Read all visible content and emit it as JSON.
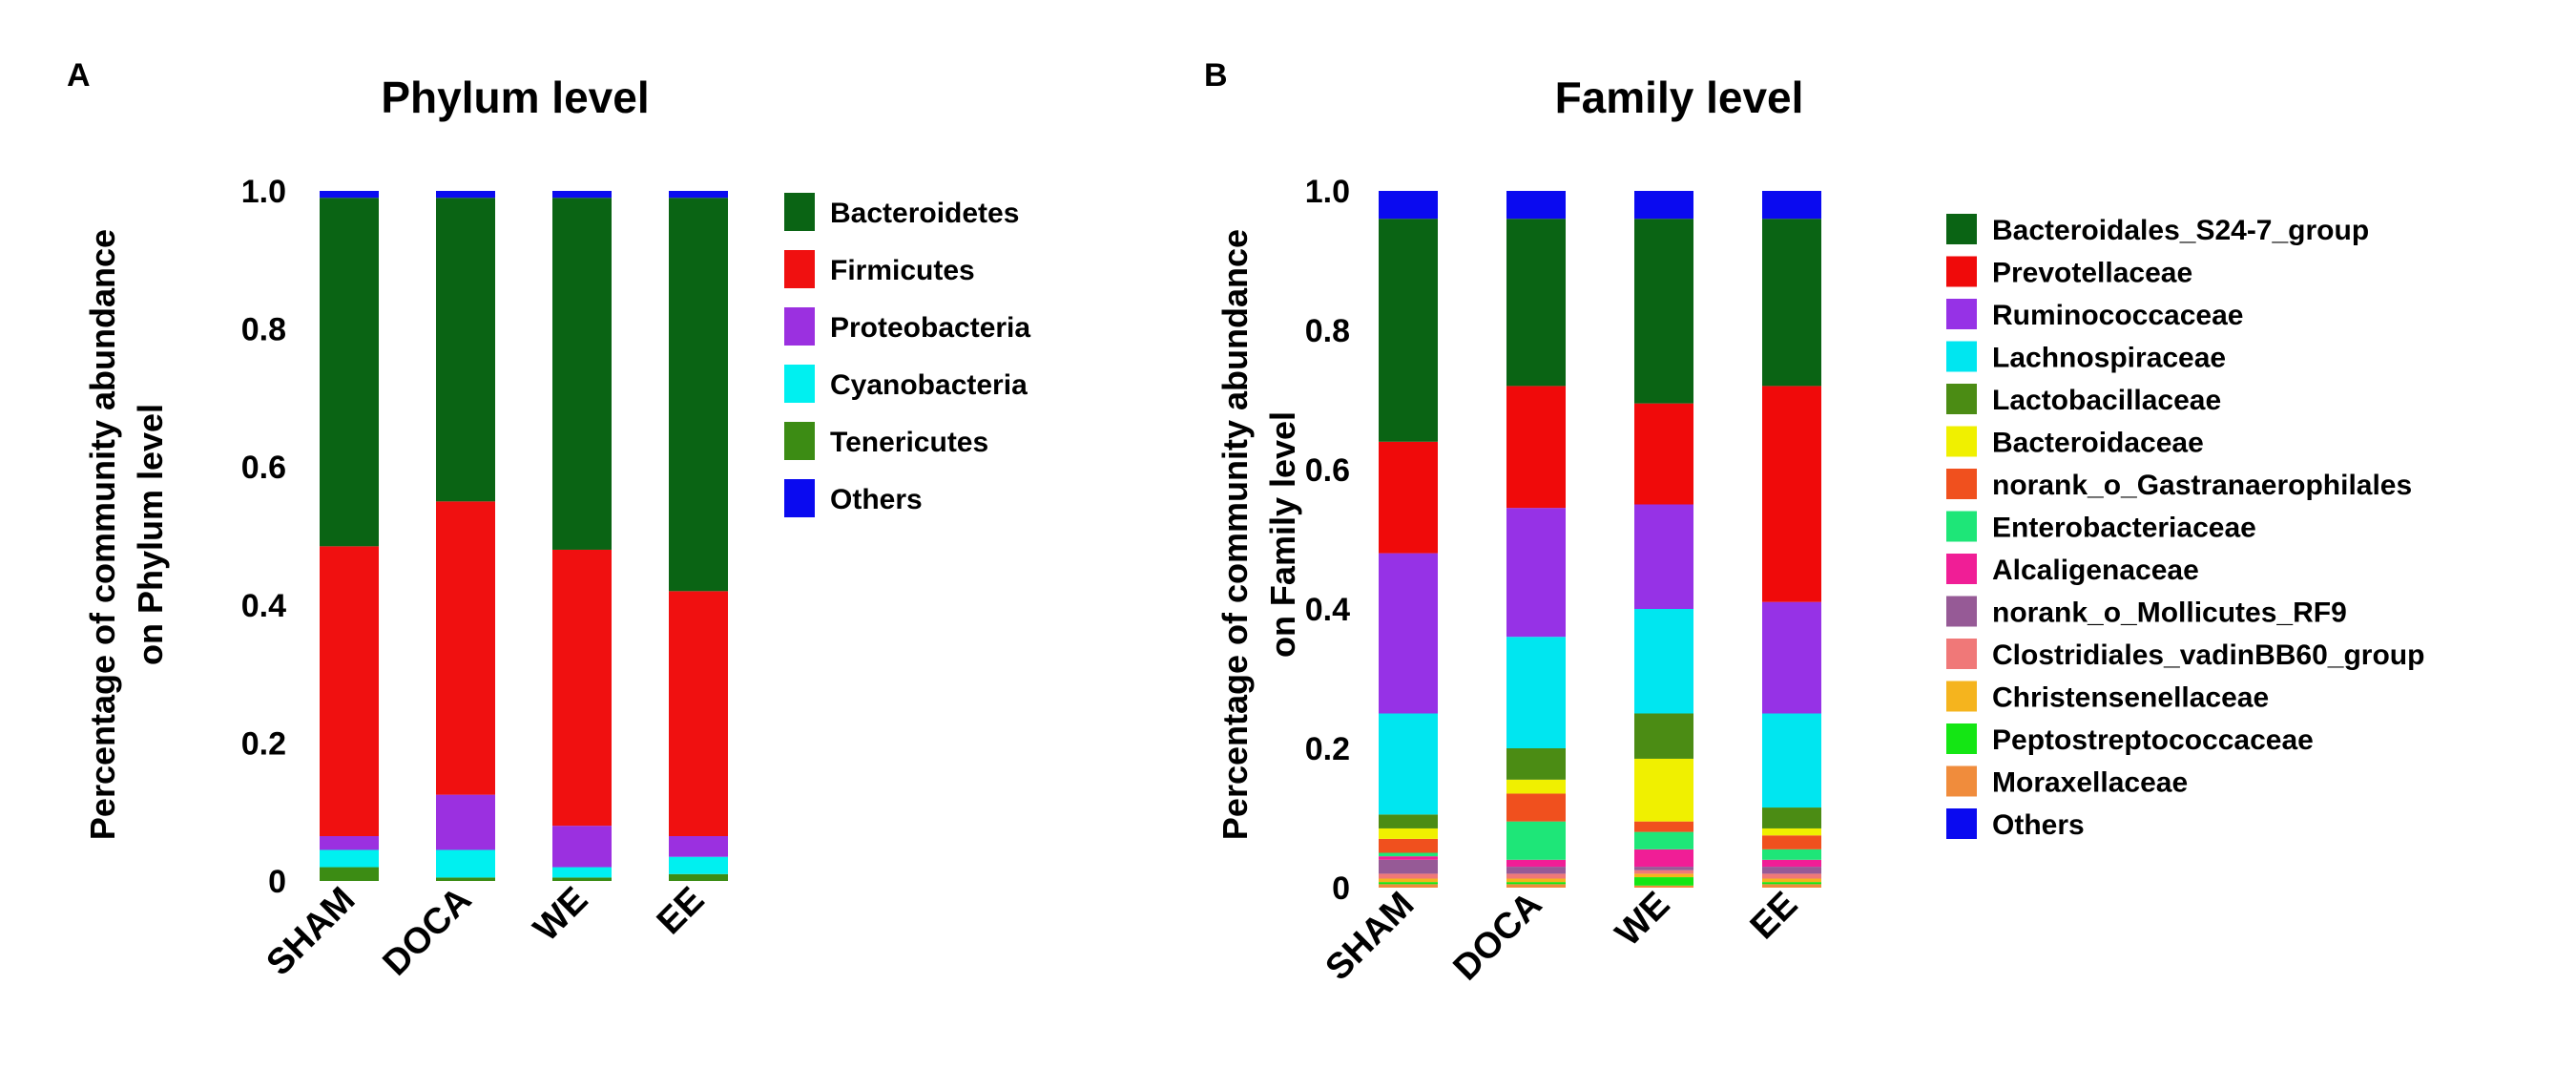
{
  "chart_data": [
    {
      "panel": "A",
      "type": "bar",
      "stacked": true,
      "title": "Phylum level",
      "ylabel": "Percentage of community  abundance on Phylum level",
      "xlabel": "",
      "ylim": [
        0,
        1.0
      ],
      "yticks": [
        "0",
        "0.2",
        "0.4",
        "0.6",
        "0.8",
        "1.0"
      ],
      "categories": [
        "SHAM",
        "DOCA",
        "WE",
        "EE"
      ],
      "legend_position": "right",
      "series": [
        {
          "name": "Tenericutes",
          "color": "#3c8c14",
          "values": [
            0.02,
            0.005,
            0.005,
            0.01
          ]
        },
        {
          "name": "Cyanobacteria",
          "color": "#00f0f0",
          "values": [
            0.025,
            0.04,
            0.015,
            0.025
          ]
        },
        {
          "name": "Proteobacteria",
          "color": "#9b30e0",
          "values": [
            0.02,
            0.08,
            0.06,
            0.03
          ]
        },
        {
          "name": "Firmicutes",
          "color": "#f01010",
          "values": [
            0.42,
            0.425,
            0.4,
            0.355
          ]
        },
        {
          "name": "Bacteroidetes",
          "color": "#0a6414",
          "values": [
            0.505,
            0.44,
            0.51,
            0.57
          ]
        },
        {
          "name": "Others",
          "color": "#0a0af0",
          "values": [
            0.01,
            0.01,
            0.01,
            0.01
          ]
        }
      ],
      "legend_order": [
        "Bacteroidetes",
        "Firmicutes",
        "Proteobacteria",
        "Cyanobacteria",
        "Tenericutes",
        "Others"
      ]
    },
    {
      "panel": "B",
      "type": "bar",
      "stacked": true,
      "title": "Family level",
      "ylabel": "Percentage of community  abundance on Family level",
      "xlabel": "",
      "ylim": [
        0,
        1.0
      ],
      "yticks": [
        "0",
        "0.2",
        "0.4",
        "0.6",
        "0.8",
        "1.0"
      ],
      "categories": [
        "SHAM",
        "DOCA",
        "WE",
        "EE"
      ],
      "legend_position": "right",
      "series": [
        {
          "name": "Moraxellaceae",
          "color": "#f08c3c",
          "values": [
            0.005,
            0.005,
            0.003,
            0.005
          ]
        },
        {
          "name": "Peptostreptococcaceae",
          "color": "#14e614",
          "values": [
            0.003,
            0.003,
            0.012,
            0.003
          ]
        },
        {
          "name": "Christensenellaceae",
          "color": "#f5b41e",
          "values": [
            0.005,
            0.005,
            0.005,
            0.005
          ]
        },
        {
          "name": "Clostridiales_vadinBB60_group",
          "color": "#f07878",
          "values": [
            0.007,
            0.007,
            0.005,
            0.007
          ]
        },
        {
          "name": "norank_o_Mollicutes_RF9",
          "color": "#965a96",
          "values": [
            0.02,
            0.01,
            0.005,
            0.01
          ]
        },
        {
          "name": "Alcaligenaceae",
          "color": "#f01e96",
          "values": [
            0.005,
            0.01,
            0.025,
            0.01
          ]
        },
        {
          "name": "Enterobacteriaceae",
          "color": "#1ee678",
          "values": [
            0.005,
            0.055,
            0.025,
            0.015
          ]
        },
        {
          "name": "norank_o_Gastranaerophilales",
          "color": "#f0501e",
          "values": [
            0.02,
            0.04,
            0.015,
            0.02
          ]
        },
        {
          "name": "Bacteroidaceae",
          "color": "#f0f000",
          "values": [
            0.015,
            0.02,
            0.09,
            0.01
          ]
        },
        {
          "name": "Lactobacillaceae",
          "color": "#4b8c14",
          "values": [
            0.02,
            0.045,
            0.065,
            0.03
          ]
        },
        {
          "name": "Lachnospiraceae",
          "color": "#00e6f0",
          "values": [
            0.145,
            0.16,
            0.15,
            0.135
          ]
        },
        {
          "name": "Ruminococcaceae",
          "color": "#9632e6",
          "values": [
            0.23,
            0.185,
            0.15,
            0.16
          ]
        },
        {
          "name": "Prevotellaceae",
          "color": "#f00a0a",
          "values": [
            0.16,
            0.175,
            0.145,
            0.31
          ]
        },
        {
          "name": "Bacteroidales_S24-7_group",
          "color": "#0a6414",
          "values": [
            0.32,
            0.24,
            0.265,
            0.24
          ]
        },
        {
          "name": "Others",
          "color": "#0a0af0",
          "values": [
            0.04,
            0.04,
            0.04,
            0.04
          ]
        }
      ],
      "legend_order": [
        "Bacteroidales_S24-7_group",
        "Prevotellaceae",
        "Ruminococcaceae",
        "Lachnospiraceae",
        "Lactobacillaceae",
        "Bacteroidaceae",
        "norank_o_Gastranaerophilales",
        "Enterobacteriaceae",
        "Alcaligenaceae",
        "norank_o_Mollicutes_RF9",
        "Clostridiales_vadinBB60_group",
        "Christensenellaceae",
        "Peptostreptococcaceae",
        "Moraxellaceae",
        "Others"
      ]
    }
  ]
}
